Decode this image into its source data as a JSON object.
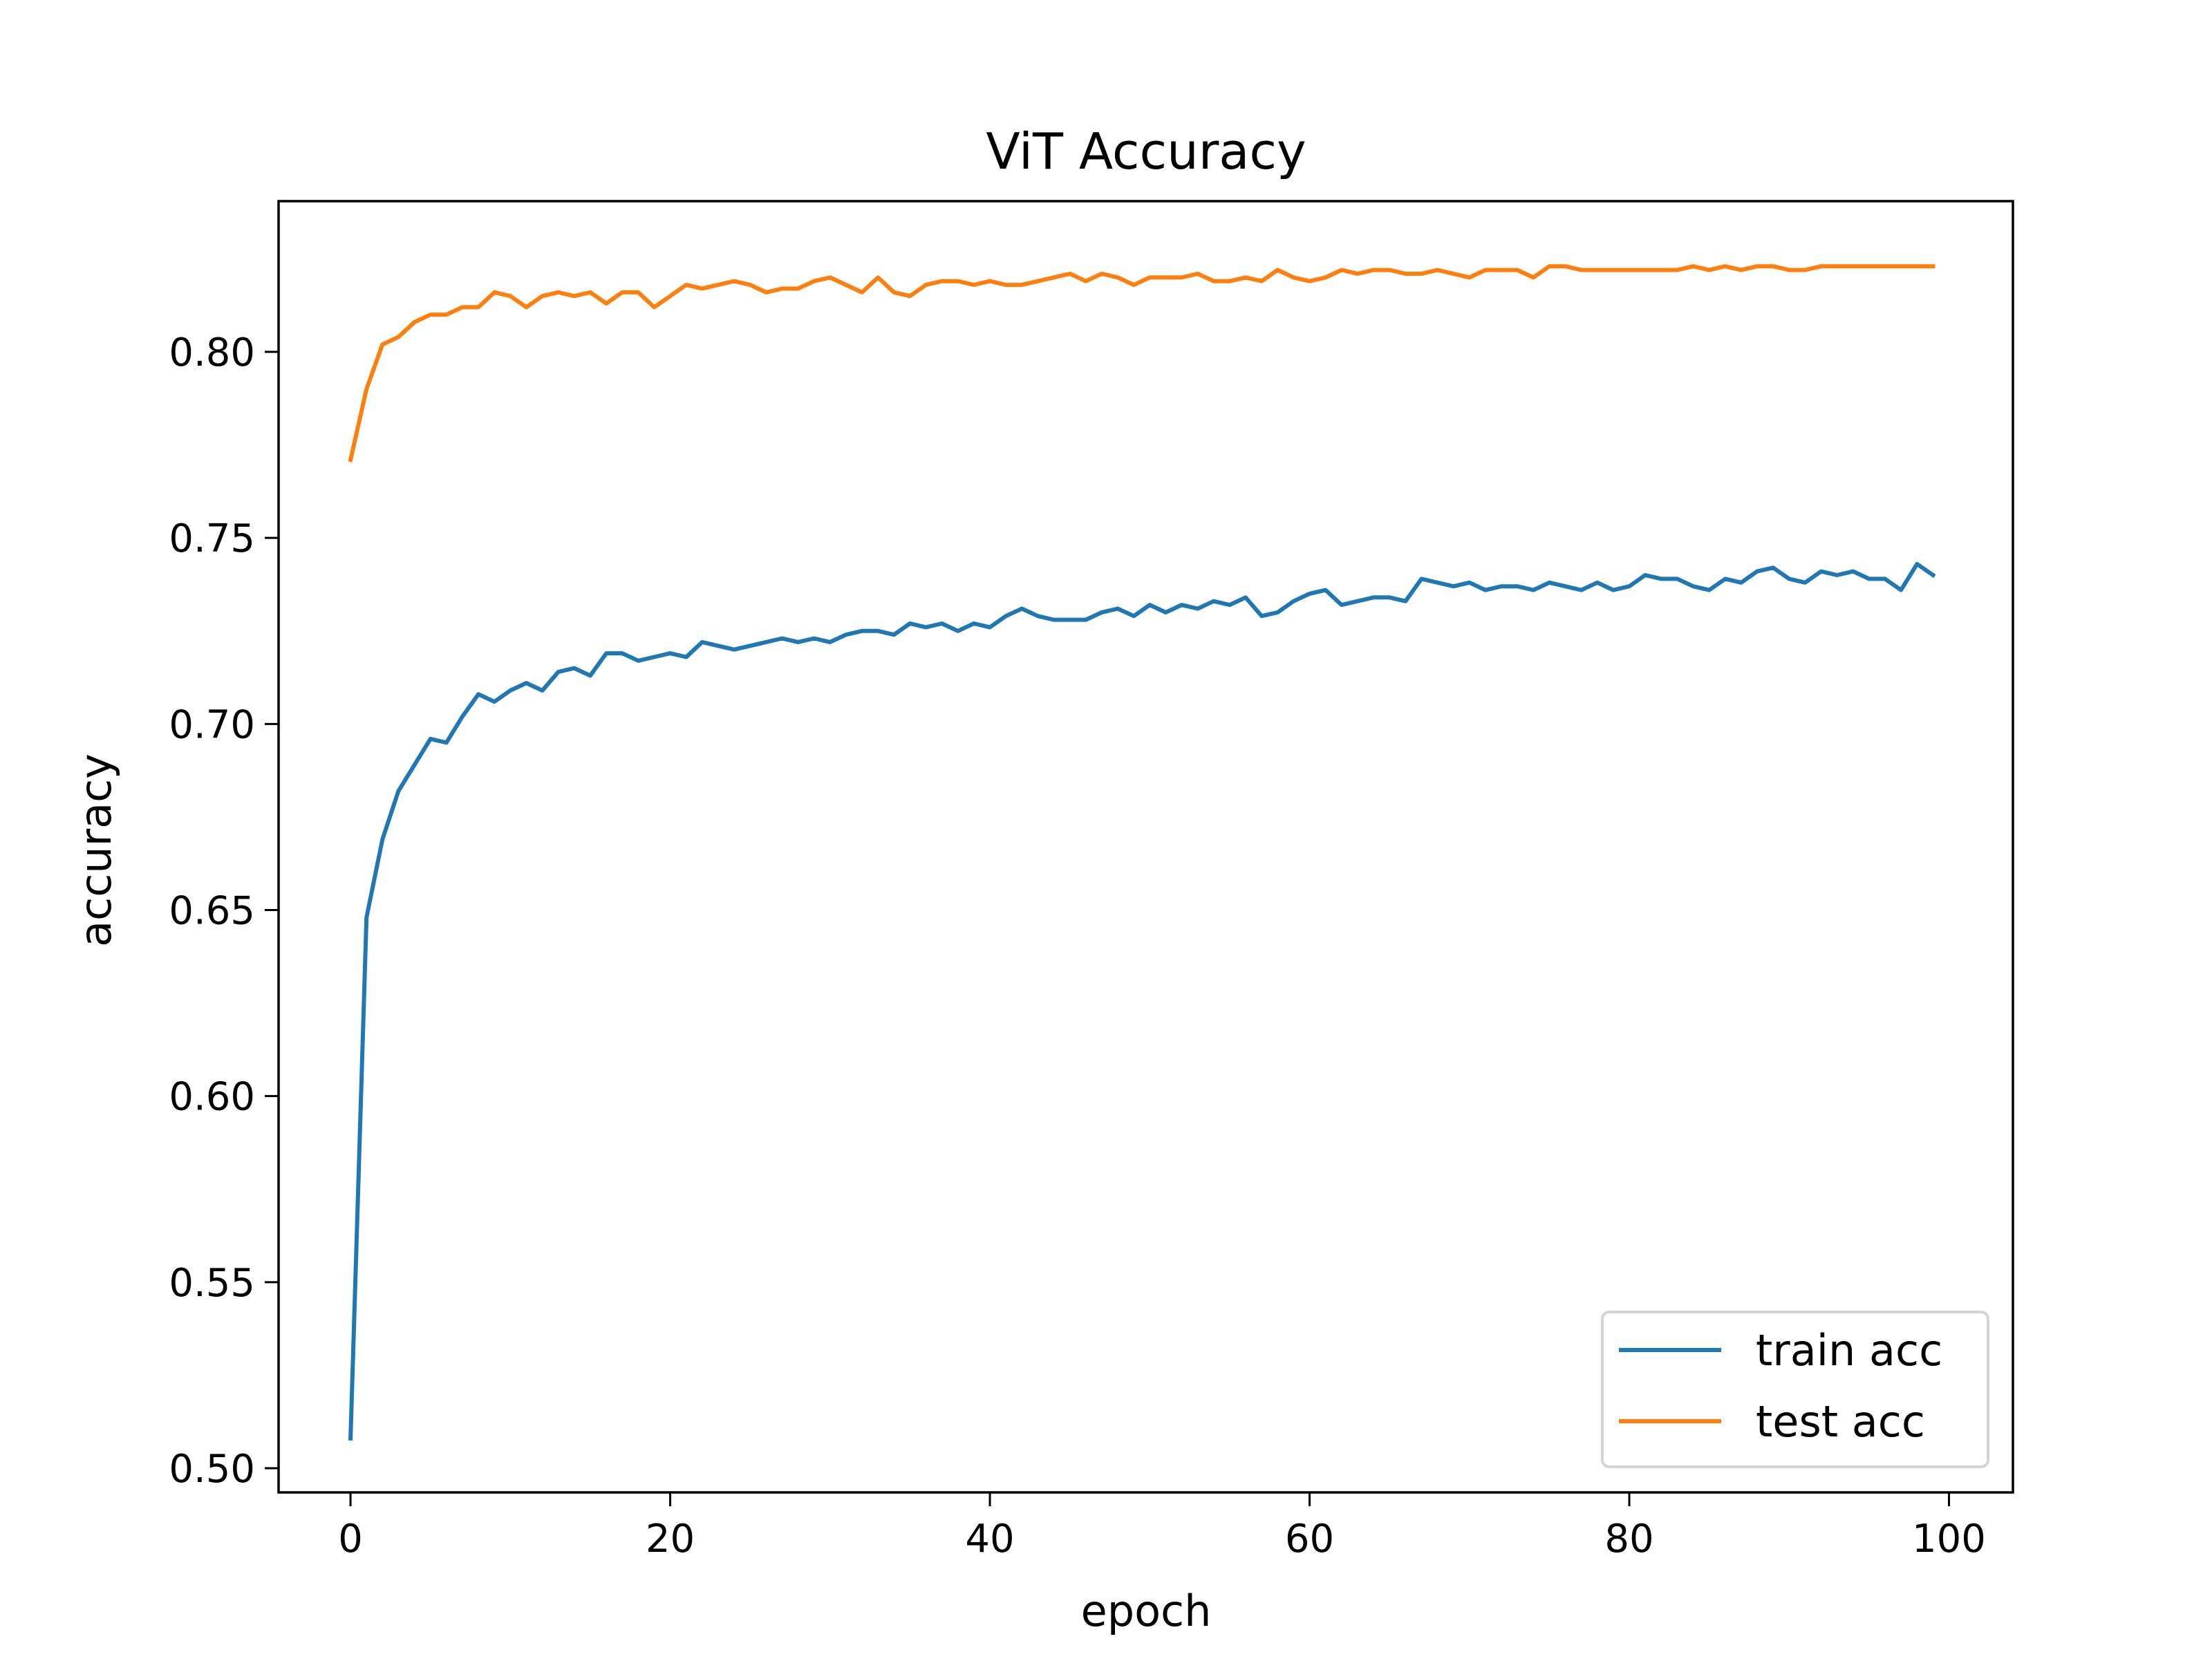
{
  "chart_data": {
    "type": "line",
    "title": "ViT Accuracy",
    "xlabel": "epoch",
    "ylabel": "accuracy",
    "xlim": [
      -4.5,
      104
    ],
    "ylim": [
      0.4935,
      0.8405
    ],
    "xticks": [
      0,
      20,
      40,
      60,
      80,
      100
    ],
    "yticks": [
      0.5,
      0.55,
      0.6,
      0.65,
      0.7,
      0.75,
      0.8
    ],
    "xtick_labels": [
      "0",
      "20",
      "40",
      "60",
      "80",
      "100"
    ],
    "ytick_labels": [
      "0.50",
      "0.55",
      "0.60",
      "0.65",
      "0.70",
      "0.75",
      "0.80"
    ],
    "grid": false,
    "legend_position": "bottom-right",
    "x": [
      0,
      1,
      2,
      3,
      4,
      5,
      6,
      7,
      8,
      9,
      10,
      11,
      12,
      13,
      14,
      15,
      16,
      17,
      18,
      19,
      20,
      21,
      22,
      23,
      24,
      25,
      26,
      27,
      28,
      29,
      30,
      31,
      32,
      33,
      34,
      35,
      36,
      37,
      38,
      39,
      40,
      41,
      42,
      43,
      44,
      45,
      46,
      47,
      48,
      49,
      50,
      51,
      52,
      53,
      54,
      55,
      56,
      57,
      58,
      59,
      60,
      61,
      62,
      63,
      64,
      65,
      66,
      67,
      68,
      69,
      70,
      71,
      72,
      73,
      74,
      75,
      76,
      77,
      78,
      79,
      80,
      81,
      82,
      83,
      84,
      85,
      86,
      87,
      88,
      89,
      90,
      91,
      92,
      93,
      94,
      95,
      96,
      97,
      98,
      99
    ],
    "series": [
      {
        "name": "train acc",
        "color": "#1f77b4",
        "values": [
          0.508,
          0.648,
          0.669,
          0.682,
          0.689,
          0.696,
          0.695,
          0.702,
          0.708,
          0.706,
          0.709,
          0.711,
          0.709,
          0.714,
          0.715,
          0.713,
          0.719,
          0.719,
          0.717,
          0.718,
          0.719,
          0.718,
          0.722,
          0.721,
          0.72,
          0.721,
          0.722,
          0.723,
          0.722,
          0.723,
          0.722,
          0.724,
          0.725,
          0.725,
          0.724,
          0.727,
          0.726,
          0.727,
          0.725,
          0.727,
          0.726,
          0.729,
          0.731,
          0.729,
          0.728,
          0.728,
          0.728,
          0.73,
          0.731,
          0.729,
          0.732,
          0.73,
          0.732,
          0.731,
          0.733,
          0.732,
          0.734,
          0.729,
          0.73,
          0.733,
          0.735,
          0.736,
          0.732,
          0.733,
          0.734,
          0.734,
          0.733,
          0.739,
          0.738,
          0.737,
          0.738,
          0.736,
          0.737,
          0.737,
          0.736,
          0.738,
          0.737,
          0.736,
          0.738,
          0.736,
          0.737,
          0.74,
          0.739,
          0.739,
          0.737,
          0.736,
          0.739,
          0.738,
          0.741,
          0.742,
          0.739,
          0.738,
          0.741,
          0.74,
          0.741,
          0.739,
          0.739,
          0.736,
          0.743,
          0.74
        ]
      },
      {
        "name": "test acc",
        "color": "#ff7f0e",
        "values": [
          0.771,
          0.79,
          0.802,
          0.804,
          0.808,
          0.81,
          0.81,
          0.812,
          0.812,
          0.816,
          0.815,
          0.812,
          0.815,
          0.816,
          0.815,
          0.816,
          0.813,
          0.816,
          0.816,
          0.812,
          0.815,
          0.818,
          0.817,
          0.818,
          0.819,
          0.818,
          0.816,
          0.817,
          0.817,
          0.819,
          0.82,
          0.818,
          0.816,
          0.82,
          0.816,
          0.815,
          0.818,
          0.819,
          0.819,
          0.818,
          0.819,
          0.818,
          0.818,
          0.819,
          0.82,
          0.821,
          0.819,
          0.821,
          0.82,
          0.818,
          0.82,
          0.82,
          0.82,
          0.821,
          0.819,
          0.819,
          0.82,
          0.819,
          0.822,
          0.82,
          0.819,
          0.82,
          0.822,
          0.821,
          0.822,
          0.822,
          0.821,
          0.821,
          0.822,
          0.821,
          0.82,
          0.822,
          0.822,
          0.822,
          0.82,
          0.823,
          0.823,
          0.822,
          0.822,
          0.822,
          0.822,
          0.822,
          0.822,
          0.822,
          0.823,
          0.822,
          0.823,
          0.822,
          0.823,
          0.823,
          0.822,
          0.822,
          0.823,
          0.823,
          0.823,
          0.823,
          0.823,
          0.823,
          0.823,
          0.823
        ]
      }
    ]
  }
}
